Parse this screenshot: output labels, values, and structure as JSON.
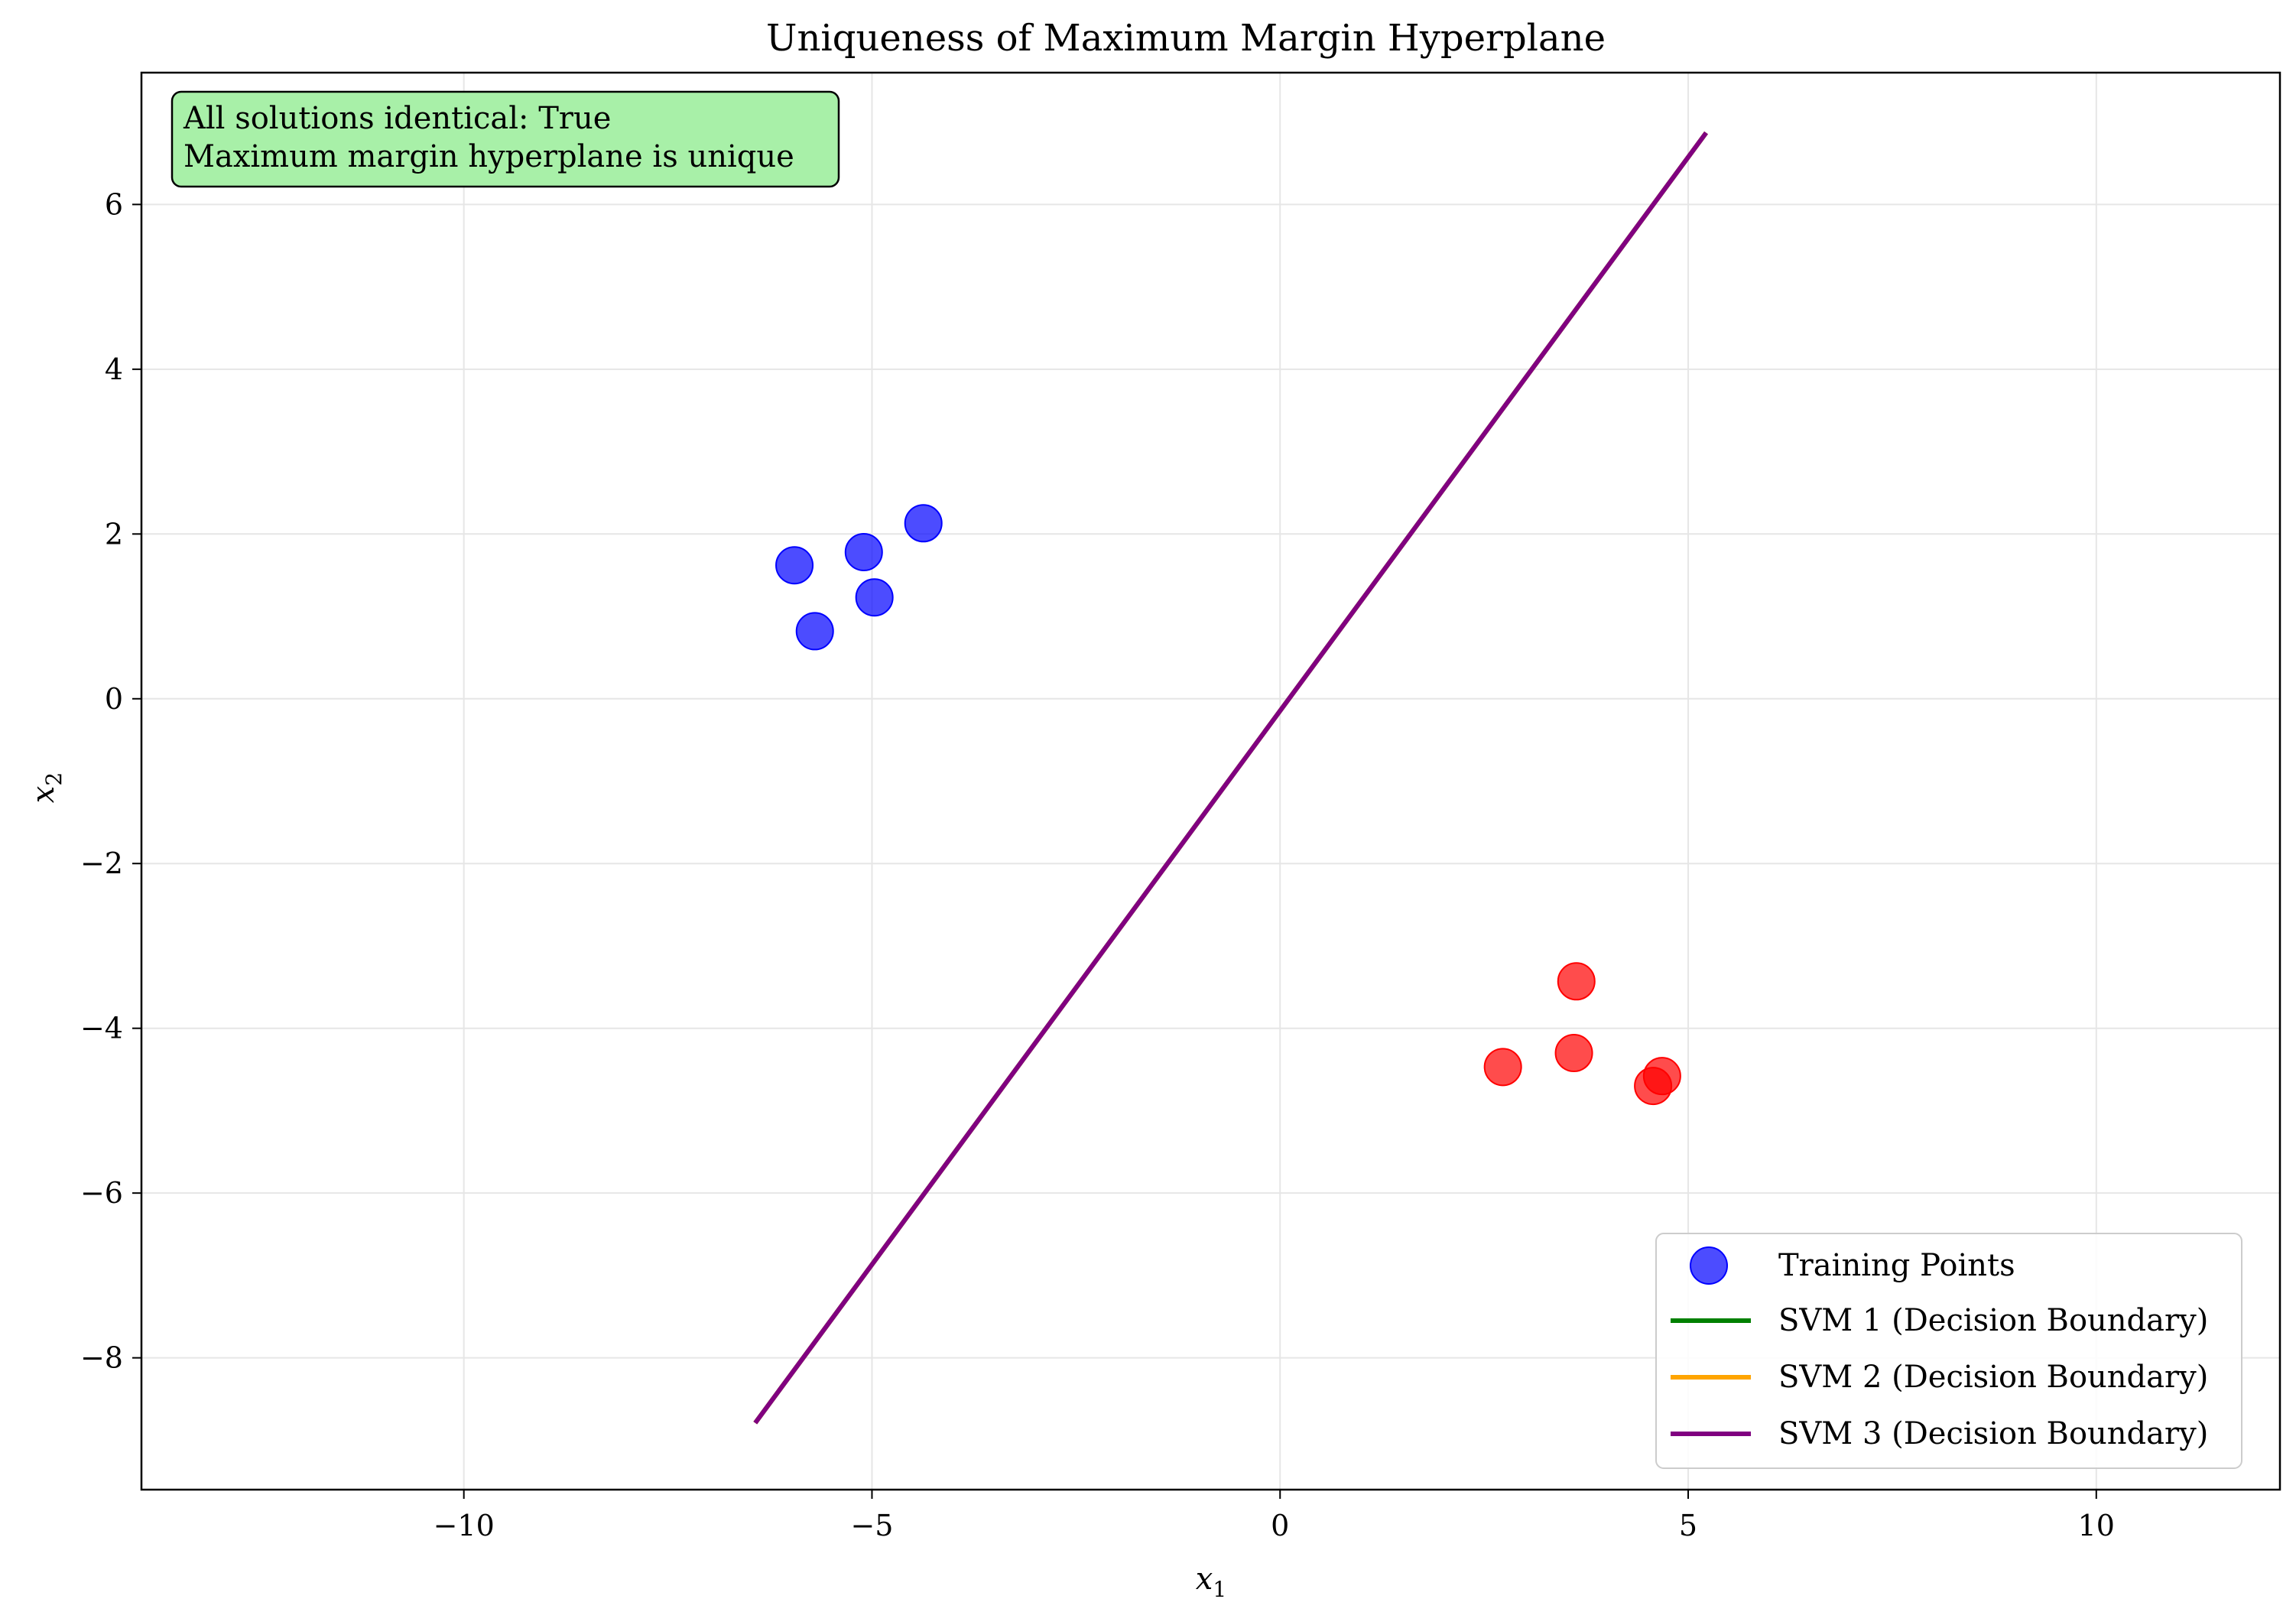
{
  "chart_data": {
    "type": "scatter",
    "title": "Uniqueness of Maximum Margin Hyperplane",
    "xlabel": "x",
    "xlabel_sub": "1",
    "ylabel": "x",
    "ylabel_sub": "2",
    "xlim": [
      -13.95,
      12.25
    ],
    "ylim": [
      -9.6,
      7.6
    ],
    "xticks": [
      -10,
      -5,
      0,
      5,
      10
    ],
    "yticks": [
      -8,
      -6,
      -4,
      -2,
      0,
      2,
      4,
      6
    ],
    "xtick_labels": [
      "−10",
      "−5",
      "0",
      "5",
      "10"
    ],
    "ytick_labels": [
      "−8",
      "−6",
      "−4",
      "−2",
      "0",
      "2",
      "4",
      "6"
    ],
    "grid": true,
    "legend_position": "lower-right",
    "series": [
      {
        "name": "Training Points",
        "kind": "scatter",
        "points": [
          {
            "x": -5.95,
            "y": 1.62,
            "color": "#0000ff"
          },
          {
            "x": -5.1,
            "y": 1.78,
            "color": "#0000ff"
          },
          {
            "x": -4.37,
            "y": 2.13,
            "color": "#0000ff"
          },
          {
            "x": -4.97,
            "y": 1.23,
            "color": "#0000ff"
          },
          {
            "x": -5.7,
            "y": 0.82,
            "color": "#0000ff"
          },
          {
            "x": 3.63,
            "y": -3.43,
            "color": "#ff0000"
          },
          {
            "x": 2.73,
            "y": -4.47,
            "color": "#ff0000"
          },
          {
            "x": 3.6,
            "y": -4.3,
            "color": "#ff0000"
          },
          {
            "x": 4.68,
            "y": -4.58,
            "color": "#ff0000"
          },
          {
            "x": 4.57,
            "y": -4.7,
            "color": "#ff0000"
          }
        ]
      },
      {
        "name": "SVM 1 (Decision Boundary)",
        "kind": "line",
        "color": "#008000",
        "x": [
          -6.43,
          5.22
        ],
        "y": [
          -8.79,
          6.87
        ]
      },
      {
        "name": "SVM 2 (Decision Boundary)",
        "kind": "line",
        "color": "#ffa500",
        "x": [
          -6.43,
          5.22
        ],
        "y": [
          -8.79,
          6.87
        ]
      },
      {
        "name": "SVM 3 (Decision Boundary)",
        "kind": "line",
        "color": "#800080",
        "x": [
          -6.43,
          5.22
        ],
        "y": [
          -8.79,
          6.87
        ]
      }
    ],
    "annotation": {
      "lines": [
        "All solutions identical: True",
        "Maximum margin hyperplane is unique"
      ],
      "background": "#a8f0a8",
      "position": "top-left"
    }
  }
}
